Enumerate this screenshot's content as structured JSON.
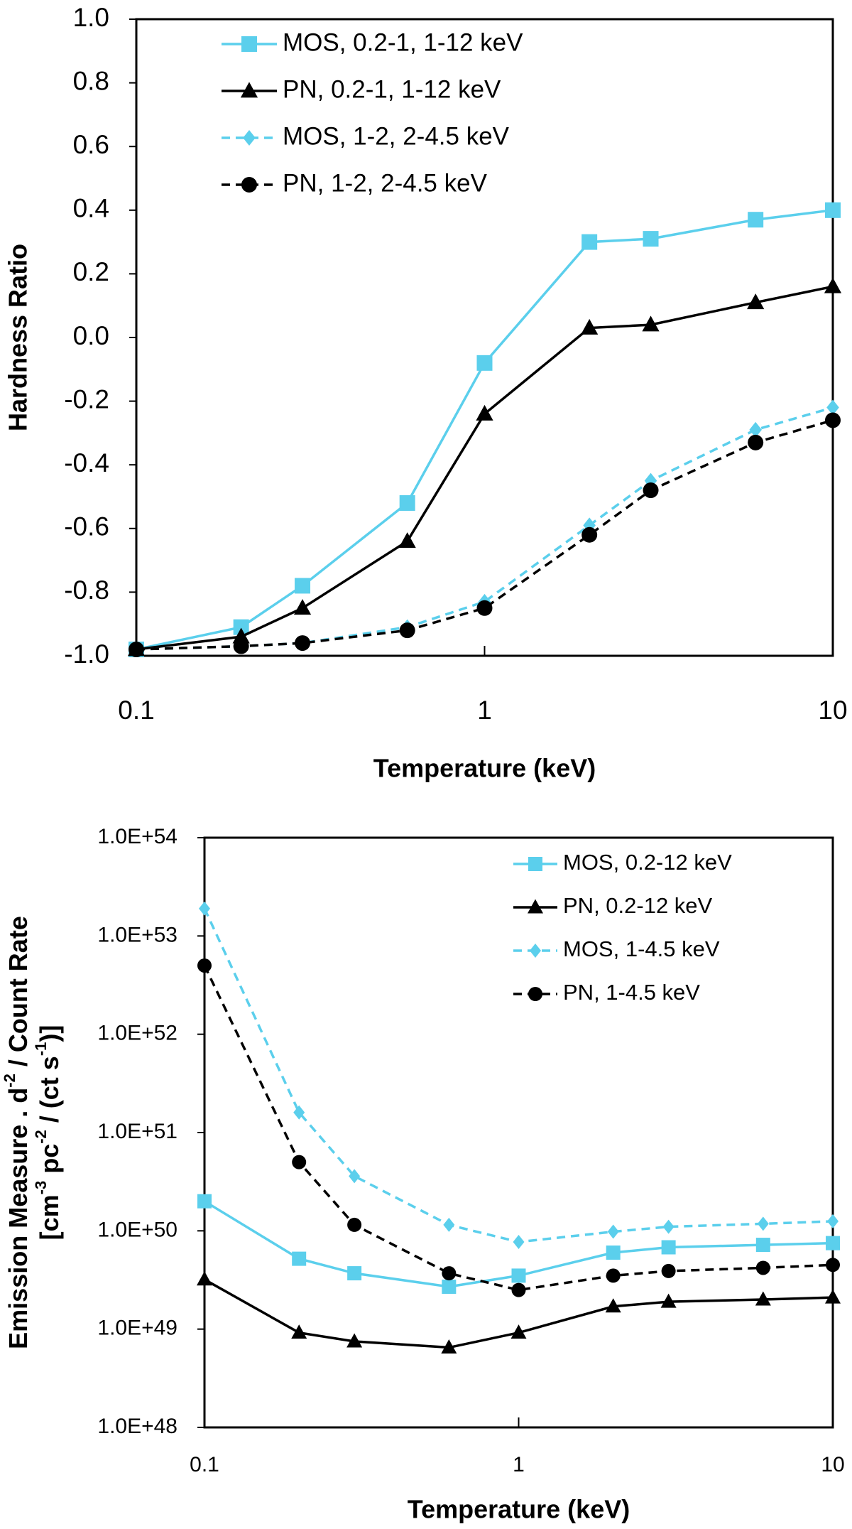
{
  "chart_data": [
    {
      "type": "line",
      "ylabel": "Hardness Ratio",
      "xlabel": "Temperature (keV)",
      "x": [
        0.1,
        0.2,
        0.3,
        0.6,
        1,
        2,
        3,
        6,
        10
      ],
      "xlog": true,
      "xlim": [
        0.1,
        10
      ],
      "xticks": [
        0.1,
        1,
        10
      ],
      "ylim": [
        -1,
        1
      ],
      "yticks": [
        {
          "value": 1,
          "label": "1.0"
        },
        0.8,
        0.6,
        0.4,
        0.2,
        {
          "value": 0,
          "label": "0.0"
        },
        -0.2,
        -0.4,
        -0.6,
        -0.8,
        {
          "value": -1,
          "label": "-1.0"
        }
      ],
      "legend": "upper left",
      "series": [
        {
          "name": "MOS, 0.2-1, 1-12 keV",
          "color": "#5bcfec",
          "marker": "square",
          "dashed": false,
          "values": [
            -0.98,
            -0.91,
            -0.78,
            -0.52,
            -0.08,
            0.3,
            0.31,
            0.37,
            0.4
          ]
        },
        {
          "name": "PN, 0.2-1, 1-12 keV",
          "color": "#000000",
          "marker": "triangle",
          "dashed": false,
          "values": [
            -0.98,
            -0.94,
            -0.85,
            -0.64,
            -0.24,
            0.03,
            0.04,
            0.11,
            0.16
          ]
        },
        {
          "name": "MOS, 1-2, 2-4.5 keV",
          "color": "#5bcfec",
          "marker": "diamond",
          "dashed": true,
          "values": [
            -0.98,
            -0.97,
            -0.96,
            -0.91,
            -0.83,
            -0.59,
            -0.45,
            -0.29,
            -0.22
          ]
        },
        {
          "name": "PN, 1-2, 2-4.5 keV",
          "color": "#000000",
          "marker": "circle",
          "dashed": true,
          "values": [
            -0.98,
            -0.97,
            -0.96,
            -0.92,
            -0.85,
            -0.62,
            -0.48,
            -0.33,
            -0.26
          ]
        }
      ]
    },
    {
      "type": "line",
      "ylabel": [
        [
          "Emission Measure . d",
          "-2",
          " / Count Rate"
        ],
        [
          "[cm",
          "-3",
          " pc",
          "-2",
          " / (ct s",
          "-1",
          ")]"
        ]
      ],
      "xlabel": "Temperature (keV)",
      "x": [
        0.1,
        0.2,
        0.3,
        0.6,
        1,
        2,
        3,
        6,
        10
      ],
      "xlog": true,
      "xlim": [
        0.1,
        10
      ],
      "xticks": [
        0.1,
        1,
        10
      ],
      "ylog": true,
      "ylim": [
        1e+48,
        1e+54
      ],
      "yticks": [
        {
          "value": 1e+54,
          "label": "1.0E+54"
        },
        {
          "value": 1e+53,
          "label": "1.0E+53"
        },
        {
          "value": 1e+52,
          "label": "1.0E+52"
        },
        {
          "value": 1e+51,
          "label": "1.0E+51"
        },
        {
          "value": 1e+50,
          "label": "1.0E+50"
        },
        {
          "value": 1e+49,
          "label": "1.0E+49"
        },
        {
          "value": 1e+48,
          "label": "1.0E+48"
        }
      ],
      "legend": "upper right",
      "series": [
        {
          "name": "MOS, 0.2-12 keV",
          "color": "#5bcfec",
          "marker": "square",
          "dashed": false,
          "values": [
            2e+50,
            5.2e+49,
            3.7e+49,
            2.7e+49,
            3.5e+49,
            6e+49,
            6.8e+49,
            7.2e+49,
            7.5e+49
          ]
        },
        {
          "name": "PN, 0.2-12 keV",
          "color": "#000000",
          "marker": "triangle",
          "dashed": false,
          "values": [
            3.2e+49,
            9.2e+48,
            7.5e+48,
            6.5e+48,
            9.2e+48,
            1.7e+49,
            1.9e+49,
            2e+49,
            2.1e+49
          ]
        },
        {
          "name": "MOS, 1-4.5 keV",
          "color": "#5bcfec",
          "marker": "diamond",
          "dashed": true,
          "values": [
            1.9e+53,
            1.6e+51,
            3.6e+50,
            1.15e+50,
            7.7e+49,
            9.8e+49,
            1.1e+50,
            1.18e+50,
            1.25e+50
          ]
        },
        {
          "name": "PN, 1-4.5 keV",
          "color": "#000000",
          "marker": "circle",
          "dashed": true,
          "values": [
            5e+52,
            5e+50,
            1.15e+50,
            3.7e+49,
            2.5e+49,
            3.5e+49,
            3.9e+49,
            4.2e+49,
            4.5e+49
          ]
        }
      ]
    }
  ]
}
